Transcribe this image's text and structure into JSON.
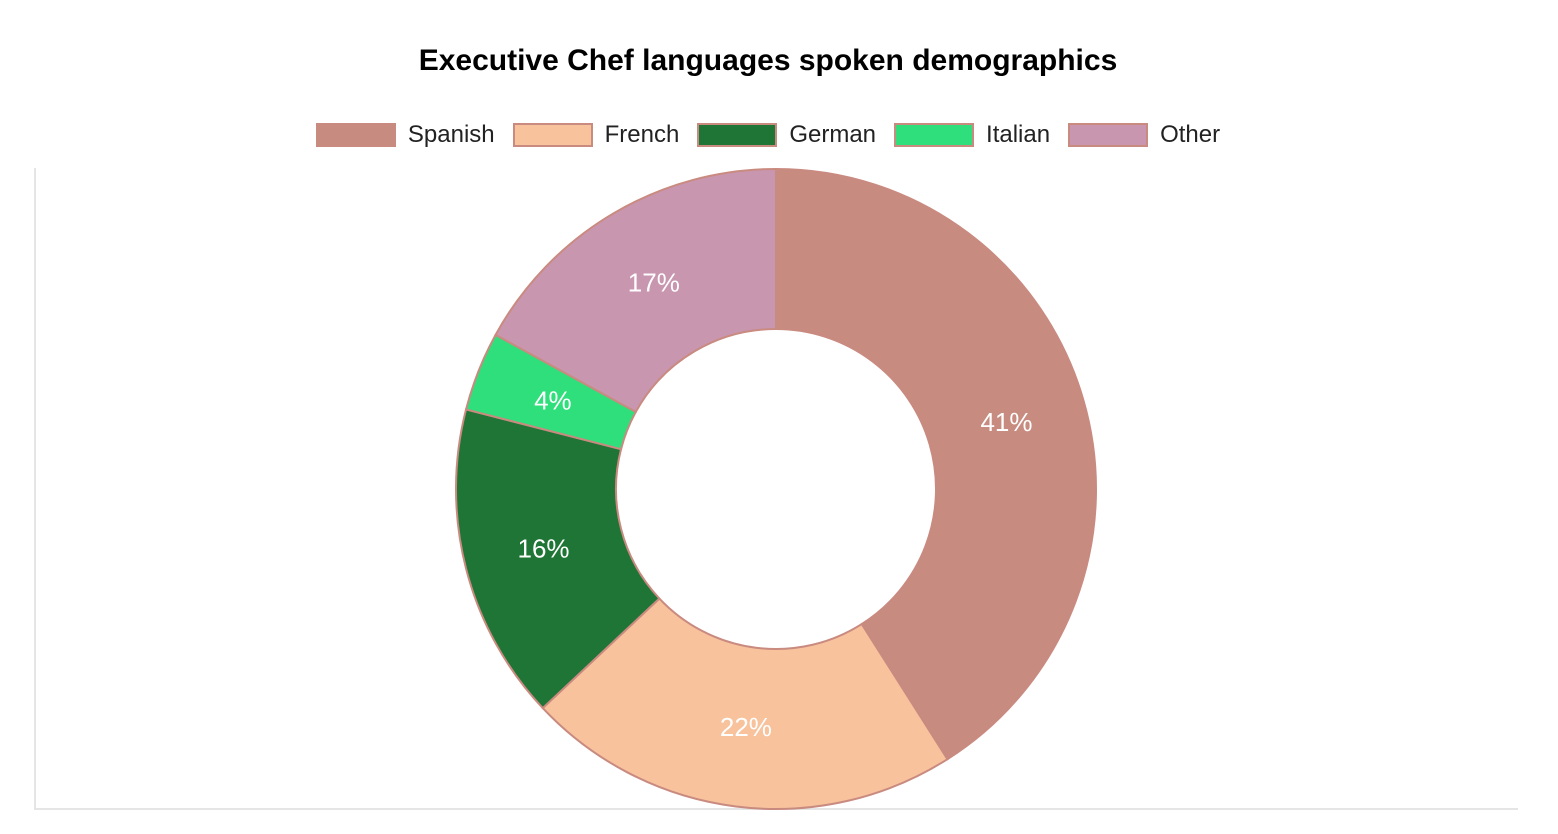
{
  "chart_data": {
    "type": "pie",
    "variant": "doughnut",
    "title": "Executive Chef languages spoken demographics",
    "legend_position": "top",
    "categories": [
      "Spanish",
      "French",
      "German",
      "Italian",
      "Other"
    ],
    "values": [
      41,
      22,
      16,
      4,
      17
    ],
    "data_labels": [
      "41%",
      "22%",
      "16%",
      "4%",
      "17%"
    ],
    "colors": [
      "#c88b80",
      "#f7c29c",
      "#1e7535",
      "#2edf7b",
      "#c996b0"
    ],
    "border_color": "#c98a80"
  }
}
